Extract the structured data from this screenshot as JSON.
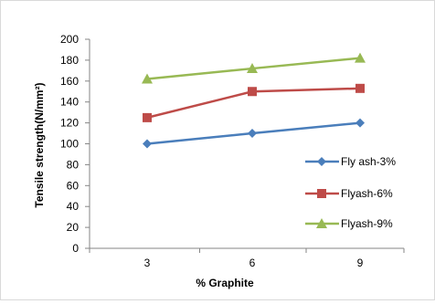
{
  "chart_data": {
    "type": "line",
    "title": "",
    "xlabel": "% Graphite",
    "ylabel": "Tensile strength(N/mm²)",
    "categories": [
      "3",
      "6",
      "9"
    ],
    "ylim": [
      0,
      200
    ],
    "yticks": [
      "0",
      "20",
      "40",
      "60",
      "80",
      "100",
      "120",
      "140",
      "160",
      "180",
      "200"
    ],
    "grid": false,
    "legend_position": "right",
    "series": [
      {
        "name": "Fly ash-3%",
        "values": [
          100,
          110,
          120
        ],
        "color": "#4a7ebb",
        "marker": "diamond"
      },
      {
        "name": "Flyash-6%",
        "values": [
          125,
          150,
          153
        ],
        "color": "#be4b48",
        "marker": "square"
      },
      {
        "name": "Flyash-9%",
        "values": [
          162,
          172,
          182
        ],
        "color": "#98b954",
        "marker": "triangle"
      }
    ]
  }
}
